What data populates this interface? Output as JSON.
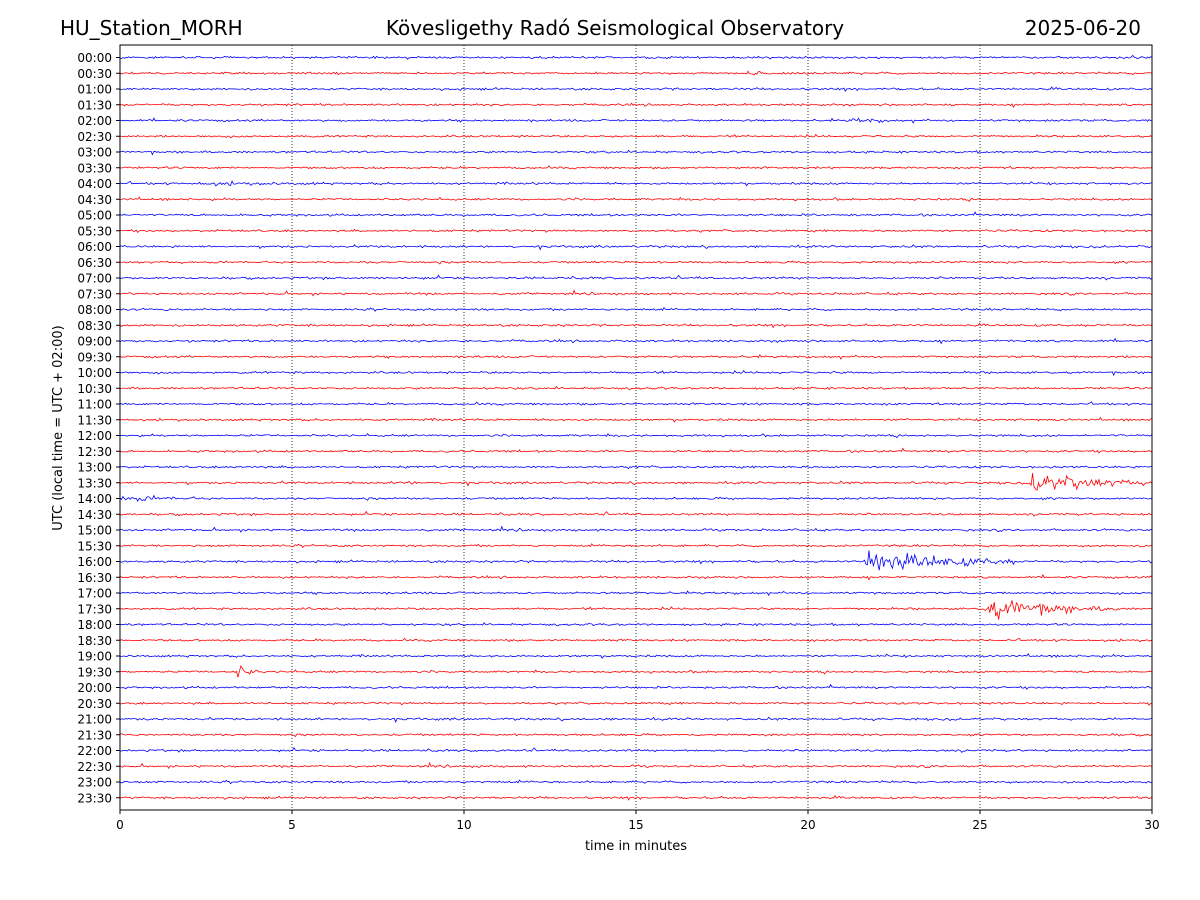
{
  "header": {
    "station": "HU_Station_MORH",
    "title": "Kövesligethy Radó Seismological Observatory",
    "date": "2025-06-20"
  },
  "chart_data": {
    "type": "line",
    "title": "Kövesligethy Radó Seismological Observatory",
    "xlabel": "time in minutes",
    "ylabel": "UTC (local time = UTC + 02:00)",
    "xlim": [
      0,
      30
    ],
    "x_ticks": [
      "0",
      "5",
      "10",
      "15",
      "20",
      "25",
      "30"
    ],
    "grid": "vertical dotted lines at x ticks",
    "trace_colors": [
      "#0000ff",
      "#ff0000"
    ],
    "rows": [
      "00:00",
      "00:30",
      "01:00",
      "01:30",
      "02:00",
      "02:30",
      "03:00",
      "03:30",
      "04:00",
      "04:30",
      "05:00",
      "05:30",
      "06:00",
      "06:30",
      "07:00",
      "07:30",
      "08:00",
      "08:30",
      "09:00",
      "09:30",
      "10:00",
      "10:30",
      "11:00",
      "11:30",
      "12:00",
      "12:30",
      "13:00",
      "13:30",
      "14:00",
      "14:30",
      "15:00",
      "15:30",
      "16:00",
      "16:30",
      "17:00",
      "17:30",
      "18:00",
      "18:30",
      "19:00",
      "19:30",
      "20:00",
      "20:30",
      "21:00",
      "21:30",
      "22:00",
      "22:30",
      "23:00",
      "23:30"
    ],
    "events": [
      {
        "row": "00:30",
        "start_min": 18.2,
        "end_min": 19.0,
        "amplitude": 0.2
      },
      {
        "row": "02:00",
        "start_min": 21.2,
        "end_min": 22.5,
        "amplitude": 0.18
      },
      {
        "row": "04:00",
        "start_min": 2.0,
        "end_min": 6.0,
        "amplitude": 0.12
      },
      {
        "row": "13:30",
        "start_min": 8.1,
        "end_min": 9.0,
        "amplitude": 0.15
      },
      {
        "row": "13:30",
        "start_min": 26.4,
        "end_min": 30.0,
        "amplitude": 0.9
      },
      {
        "row": "14:00",
        "start_min": 0.0,
        "end_min": 2.5,
        "amplitude": 0.25
      },
      {
        "row": "16:00",
        "start_min": 21.6,
        "end_min": 26.0,
        "amplitude": 1.0
      },
      {
        "row": "17:30",
        "start_min": 25.1,
        "end_min": 29.0,
        "amplitude": 0.85
      },
      {
        "row": "19:30",
        "start_min": 3.3,
        "end_min": 4.0,
        "amplitude": 0.7
      }
    ]
  }
}
